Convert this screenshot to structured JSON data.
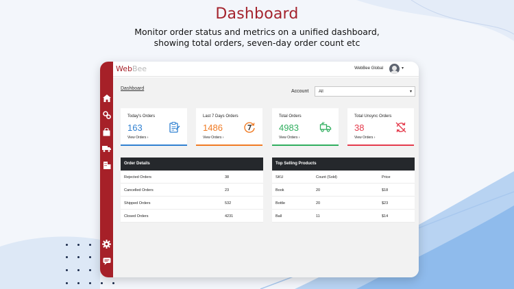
{
  "headline": {
    "title": "Dashboard",
    "subtitle_line1": "Monitor order status and metrics on a unified dashboard,",
    "subtitle_line2": "showing total orders, seven-day order count etc"
  },
  "app": {
    "logo_web": "Web",
    "logo_bee": "Bee",
    "store_name": "WebBee Global",
    "page_title": "Dashboard",
    "account_label": "Account",
    "account_value": "All"
  },
  "sidebar": {
    "items": [
      {
        "icon": "home-icon"
      },
      {
        "icon": "settings-gears-icon"
      },
      {
        "icon": "shopping-bag-icon"
      },
      {
        "icon": "truck-icon"
      },
      {
        "icon": "building-icon"
      },
      {
        "icon": "gear-icon"
      },
      {
        "icon": "chat-icon"
      }
    ]
  },
  "cards": [
    {
      "title": "Today's Orders",
      "value": "163",
      "link": "View Orders ›",
      "color": "#2f80d1",
      "icon": "clipboard-icon"
    },
    {
      "title": "Last 7 Days Orders",
      "value": "1486",
      "link": "View Orders ›",
      "color": "#f07a23",
      "icon": "seven-day-icon"
    },
    {
      "title": "Total Orders",
      "value": "4983",
      "link": "View Orders ›",
      "color": "#2fae5e",
      "icon": "delivery-truck-icon"
    },
    {
      "title": "Total Unsync Orders",
      "value": "38",
      "link": "View Orders ›",
      "color": "#e43a4b",
      "icon": "sync-off-icon"
    }
  ],
  "order_details": {
    "title": "Order Details",
    "rows": [
      {
        "label": "Rejected Orders",
        "value": "38"
      },
      {
        "label": "Cancelled Orders",
        "value": "23"
      },
      {
        "label": "Shipped Orders",
        "value": "532"
      },
      {
        "label": "Closed Orders",
        "value": "4231"
      }
    ]
  },
  "top_selling": {
    "title": "Top Selling Products",
    "columns": [
      "SKU",
      "Count (Sold)",
      "Price"
    ],
    "rows": [
      [
        "Book",
        "20",
        "$18"
      ],
      [
        "Bottle",
        "20",
        "$23"
      ],
      [
        "Ball",
        "11",
        "$14"
      ]
    ]
  }
}
